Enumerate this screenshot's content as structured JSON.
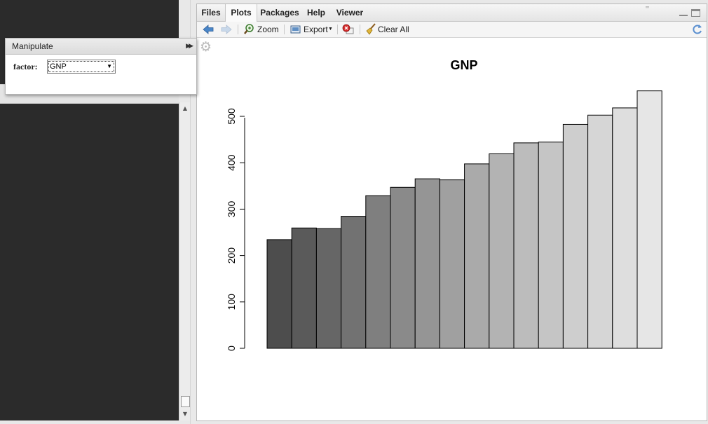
{
  "tabs": [
    {
      "label": "Files",
      "active": false
    },
    {
      "label": "Plots",
      "active": true
    },
    {
      "label": "Packages",
      "active": false
    },
    {
      "label": "Help",
      "active": false
    },
    {
      "label": "Viewer",
      "active": false
    }
  ],
  "toolbar": {
    "zoom_label": "Zoom",
    "export_label": "Export",
    "clear_label": "Clear All"
  },
  "manipulate": {
    "title": "Manipulate",
    "factor_label": "factor:",
    "factor_value": "GNP"
  },
  "chart_data": {
    "type": "bar",
    "title": "GNP",
    "xlabel": "",
    "ylabel": "",
    "ylim": [
      0,
      560
    ],
    "yticks": [
      0,
      100,
      200,
      300,
      400,
      500
    ],
    "ytick_labels": [
      "0",
      "100",
      "200",
      "300",
      "400",
      "500"
    ],
    "values": [
      234.3,
      259.4,
      258.1,
      284.6,
      329.0,
      347.0,
      365.4,
      363.1,
      397.5,
      419.2,
      442.8,
      444.5,
      482.7,
      502.6,
      518.2,
      554.9
    ],
    "colors": [
      "#4d4d4d",
      "#5a5a5a",
      "#666666",
      "#727272",
      "#7f7f7f",
      "#8a8a8a",
      "#959595",
      "#a0a0a0",
      "#aaaaaa",
      "#b3b3b3",
      "#bcbcbc",
      "#c5c5c5",
      "#cecece",
      "#d6d6d6",
      "#dedede",
      "#e6e6e6"
    ]
  }
}
